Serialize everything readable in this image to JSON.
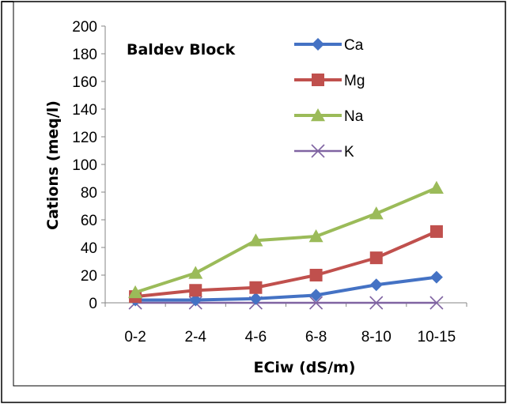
{
  "chart_data": {
    "type": "line",
    "title": "Baldev Block",
    "xlabel": "ECiw (dS/m)",
    "ylabel": "Cations (meq/l)",
    "categories": [
      "0-2",
      "2-4",
      "4-6",
      "6-8",
      "8-10",
      "10-15"
    ],
    "ylim": [
      0,
      200
    ],
    "yticks": [
      0,
      20,
      40,
      60,
      80,
      100,
      120,
      140,
      160,
      180,
      200
    ],
    "grid": false,
    "legend_position": "top-right",
    "series": [
      {
        "name": "Ca",
        "color": "#4472C4",
        "marker": "diamond",
        "values": [
          2,
          2,
          3,
          5.5,
          13,
          18.5
        ]
      },
      {
        "name": "Mg",
        "color": "#C0504D",
        "marker": "square",
        "values": [
          4.5,
          9,
          11,
          20,
          32.5,
          51.5
        ]
      },
      {
        "name": "Na",
        "color": "#9BBB59",
        "marker": "triangle",
        "values": [
          7.5,
          21.5,
          45,
          48,
          64.5,
          83
        ]
      },
      {
        "name": "K",
        "color": "#8064A2",
        "marker": "x",
        "values": [
          0,
          0,
          0,
          0,
          0,
          0
        ]
      }
    ]
  }
}
